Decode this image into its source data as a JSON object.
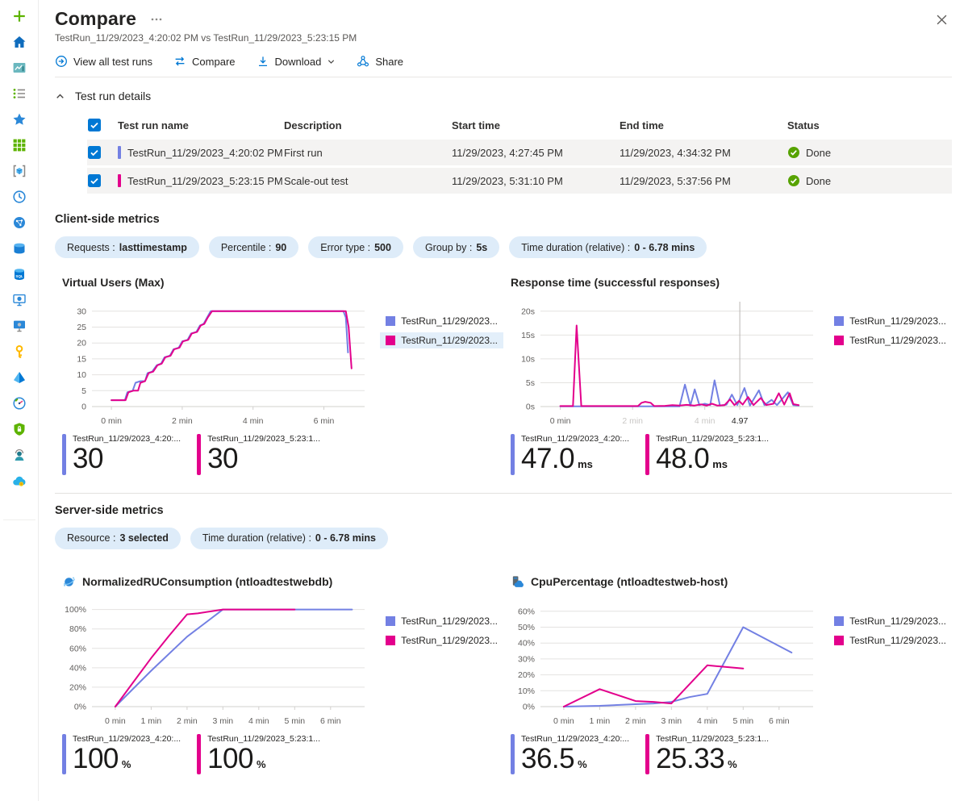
{
  "colors": {
    "accent": "#0078D4",
    "series_blue": "#7380E3",
    "series_magenta": "#E3008C",
    "status_green": "#57A300",
    "pill_bg": "#DEECF9",
    "row_bg": "#F4F3F2"
  },
  "header": {
    "title": "Compare",
    "subtitle": "TestRun_11/29/2023_4:20:02 PM vs TestRun_11/29/2023_5:23:15 PM"
  },
  "toolbar": {
    "view_all_label": "View all test runs",
    "compare_label": "Compare",
    "download_label": "Download",
    "share_label": "Share"
  },
  "details": {
    "section_label": "Test run details",
    "table": {
      "headers": [
        "Test run name",
        "Description",
        "Start time",
        "End time",
        "Status"
      ],
      "rows": [
        {
          "name": "TestRun_11/29/2023_4:20:02 PM",
          "description": "First run",
          "start": "11/29/2023, 4:27:45 PM",
          "end": "11/29/2023, 4:34:32 PM",
          "status": "Done",
          "color": "#7380E3",
          "checked": true
        },
        {
          "name": "TestRun_11/29/2023_5:23:15 PM",
          "description": "Scale-out test",
          "start": "11/29/2023, 5:31:10 PM",
          "end": "11/29/2023, 5:37:56 PM",
          "status": "Done",
          "color": "#E3008C",
          "checked": true
        }
      ]
    }
  },
  "client_metrics": {
    "heading": "Client-side metrics",
    "pills": [
      {
        "label": "Requests :",
        "value": "lasttimestamp"
      },
      {
        "label": "Percentile :",
        "value": "90"
      },
      {
        "label": "Error type :",
        "value": "500"
      },
      {
        "label": "Group by :",
        "value": "5s"
      },
      {
        "label": "Time duration (relative) :",
        "value": "0 - 6.78 mins"
      }
    ]
  },
  "server_metrics": {
    "heading": "Server-side metrics",
    "pills": [
      {
        "label": "Resource :",
        "value": "3 selected"
      },
      {
        "label": "Time duration (relative) :",
        "value": "0 - 6.78 mins"
      }
    ]
  },
  "chart_data": [
    {
      "type": "line",
      "title": "Virtual Users (Max)",
      "xlim": [
        -0.55,
        7.15
      ],
      "ylim": [
        0,
        33
      ],
      "yticks": [
        {
          "v": 30,
          "label": "30"
        },
        {
          "v": 25,
          "label": "25"
        },
        {
          "v": 20,
          "label": "20"
        },
        {
          "v": 15,
          "label": "15"
        },
        {
          "v": 10,
          "label": "10"
        },
        {
          "v": 5,
          "label": "5"
        },
        {
          "v": 0,
          "label": "0"
        }
      ],
      "xticks": [
        {
          "v": 0,
          "label": "0 min"
        },
        {
          "v": 2,
          "label": "2 min"
        },
        {
          "v": 4,
          "label": "4 min"
        },
        {
          "v": 6,
          "label": "6 min"
        }
      ],
      "crosshair_x": null,
      "legend": [
        {
          "label": "TestRun_11/29/2023...",
          "color": "#7380E3",
          "highlight": false
        },
        {
          "label": "TestRun_11/29/2023...",
          "color": "#E3008C",
          "highlight": true
        }
      ],
      "series": [
        {
          "name": "TestRun_11/29/2023_4:20:02 PM",
          "color": "#7380E3",
          "points": [
            [
              0,
              2
            ],
            [
              0.38,
              2
            ],
            [
              0.45,
              4.5
            ],
            [
              0.6,
              5
            ],
            [
              0.68,
              7.5
            ],
            [
              0.82,
              8
            ],
            [
              0.95,
              8
            ],
            [
              1.02,
              10.5
            ],
            [
              1.15,
              11
            ],
            [
              1.28,
              13
            ],
            [
              1.4,
              13.5
            ],
            [
              1.5,
              15.5
            ],
            [
              1.65,
              16
            ],
            [
              1.75,
              18
            ],
            [
              1.9,
              18.5
            ],
            [
              2.0,
              20.5
            ],
            [
              2.15,
              21
            ],
            [
              2.25,
              23
            ],
            [
              2.4,
              23.5
            ],
            [
              2.5,
              25.5
            ],
            [
              2.6,
              26
            ],
            [
              2.7,
              28
            ],
            [
              2.8,
              30
            ],
            [
              6.55,
              30
            ],
            [
              6.62,
              28
            ],
            [
              6.68,
              17
            ]
          ]
        },
        {
          "name": "TestRun_11/29/2023_5:23:15 PM",
          "color": "#E3008C",
          "points": [
            [
              0,
              2
            ],
            [
              0.4,
              2
            ],
            [
              0.48,
              4.5
            ],
            [
              0.62,
              5
            ],
            [
              0.75,
              5
            ],
            [
              0.82,
              7.5
            ],
            [
              0.95,
              8
            ],
            [
              1.05,
              10.5
            ],
            [
              1.18,
              11
            ],
            [
              1.3,
              13
            ],
            [
              1.42,
              13.5
            ],
            [
              1.52,
              15.5
            ],
            [
              1.67,
              16
            ],
            [
              1.77,
              18
            ],
            [
              1.92,
              18.5
            ],
            [
              2.02,
              20.5
            ],
            [
              2.17,
              21
            ],
            [
              2.27,
              23
            ],
            [
              2.42,
              23.5
            ],
            [
              2.52,
              25.5
            ],
            [
              2.62,
              26
            ],
            [
              2.72,
              28
            ],
            [
              2.84,
              30
            ],
            [
              6.62,
              30
            ],
            [
              6.7,
              25
            ],
            [
              6.78,
              12
            ]
          ]
        }
      ],
      "stats": [
        {
          "label": "TestRun_11/29/2023_4:20:...",
          "value": "30",
          "unit": "",
          "color": "#7380E3"
        },
        {
          "label": "TestRun_11/29/2023_5:23:1...",
          "value": "30",
          "unit": "",
          "color": "#E3008C"
        }
      ]
    },
    {
      "type": "line",
      "title": "Response time (successful responses)",
      "xlim": [
        -0.55,
        7.0
      ],
      "ylim": [
        0,
        22
      ],
      "yticks": [
        {
          "v": 20,
          "label": "20s"
        },
        {
          "v": 15,
          "label": "15s"
        },
        {
          "v": 10,
          "label": "10s"
        },
        {
          "v": 5,
          "label": "5s"
        },
        {
          "v": 0,
          "label": "0s"
        }
      ],
      "xticks": [
        {
          "v": 0,
          "label": "0 min"
        },
        {
          "v": 2,
          "label": "2 min",
          "faded": true
        },
        {
          "v": 4,
          "label": "4 min",
          "faded": true
        },
        {
          "v": 4.97,
          "label": "4.97",
          "strong": true
        }
      ],
      "crosshair_x": 4.97,
      "legend": [
        {
          "label": "TestRun_11/29/2023...",
          "color": "#7380E3",
          "highlight": false
        },
        {
          "label": "TestRun_11/29/2023...",
          "color": "#E3008C",
          "highlight": false
        }
      ],
      "series": [
        {
          "name": "TestRun_11/29/2023_4:20:02 PM",
          "color": "#7380E3",
          "points": [
            [
              0,
              0.05
            ],
            [
              3.3,
              0.05
            ],
            [
              3.45,
              4.6
            ],
            [
              3.6,
              0.2
            ],
            [
              3.72,
              3.6
            ],
            [
              3.85,
              0.3
            ],
            [
              4.0,
              0.6
            ],
            [
              4.15,
              0.3
            ],
            [
              4.27,
              5.5
            ],
            [
              4.42,
              0.2
            ],
            [
              4.6,
              0.4
            ],
            [
              4.75,
              2.5
            ],
            [
              4.9,
              0.3
            ],
            [
              5.1,
              3.9
            ],
            [
              5.25,
              0.2
            ],
            [
              5.5,
              3.4
            ],
            [
              5.65,
              0.3
            ],
            [
              5.85,
              1.4
            ],
            [
              6.0,
              0.3
            ],
            [
              6.3,
              3
            ],
            [
              6.45,
              0.3
            ],
            [
              6.6,
              0.2
            ]
          ]
        },
        {
          "name": "TestRun_11/29/2023_5:23:15 PM",
          "color": "#E3008C",
          "points": [
            [
              0,
              0.1
            ],
            [
              0.35,
              0.1
            ],
            [
              0.45,
              17
            ],
            [
              0.58,
              0.1
            ],
            [
              2.15,
              0.1
            ],
            [
              2.25,
              0.8
            ],
            [
              2.35,
              1.0
            ],
            [
              2.5,
              0.8
            ],
            [
              2.6,
              0.1
            ],
            [
              2.9,
              0.15
            ],
            [
              3.1,
              0.3
            ],
            [
              3.3,
              0.2
            ],
            [
              3.5,
              0.35
            ],
            [
              3.7,
              0.2
            ],
            [
              3.9,
              0.45
            ],
            [
              4.05,
              0.2
            ],
            [
              4.2,
              0.6
            ],
            [
              4.35,
              0.2
            ],
            [
              4.55,
              0.3
            ],
            [
              4.7,
              1.5
            ],
            [
              4.82,
              0.3
            ],
            [
              4.95,
              1.2
            ],
            [
              5.05,
              0.4
            ],
            [
              5.2,
              2.0
            ],
            [
              5.35,
              0.3
            ],
            [
              5.55,
              1.8
            ],
            [
              5.7,
              0.3
            ],
            [
              5.9,
              0.6
            ],
            [
              6.05,
              2.8
            ],
            [
              6.2,
              0.4
            ],
            [
              6.35,
              2.8
            ],
            [
              6.45,
              0.5
            ],
            [
              6.6,
              0.3
            ]
          ]
        }
      ],
      "stats": [
        {
          "label": "TestRun_11/29/2023_4:20:...",
          "value": "47.0",
          "unit": "ms",
          "color": "#7380E3"
        },
        {
          "label": "TestRun_11/29/2023_5:23:1...",
          "value": "48.0",
          "unit": "ms",
          "color": "#E3008C"
        }
      ]
    },
    {
      "type": "line",
      "title": "NormalizedRUConsumption (ntloadtestwebdb)",
      "icon": "cosmos-db",
      "xlim": [
        -0.65,
        6.95
      ],
      "ylim": [
        0,
        108
      ],
      "yticks": [
        {
          "v": 100,
          "label": "100%"
        },
        {
          "v": 80,
          "label": "80%"
        },
        {
          "v": 60,
          "label": "60%"
        },
        {
          "v": 40,
          "label": "40%"
        },
        {
          "v": 20,
          "label": "20%"
        },
        {
          "v": 0,
          "label": "0%"
        }
      ],
      "xticks": [
        {
          "v": 0,
          "label": "0 min"
        },
        {
          "v": 1,
          "label": "1 min"
        },
        {
          "v": 2,
          "label": "2 min"
        },
        {
          "v": 3,
          "label": "3 min"
        },
        {
          "v": 4,
          "label": "4 min"
        },
        {
          "v": 5,
          "label": "5 min"
        },
        {
          "v": 6,
          "label": "6 min"
        }
      ],
      "crosshair_x": null,
      "legend": [
        {
          "label": "TestRun_11/29/2023...",
          "color": "#7380E3",
          "highlight": false
        },
        {
          "label": "TestRun_11/29/2023...",
          "color": "#E3008C",
          "highlight": false
        }
      ],
      "series": [
        {
          "name": "TestRun_11/29/2023_4:20:02 PM",
          "color": "#7380E3",
          "points": [
            [
              0,
              0
            ],
            [
              1,
              37
            ],
            [
              2,
              72
            ],
            [
              2.5,
              86
            ],
            [
              3,
              100
            ],
            [
              6.6,
              100
            ]
          ]
        },
        {
          "name": "TestRun_11/29/2023_5:23:15 PM",
          "color": "#E3008C",
          "points": [
            [
              0,
              0
            ],
            [
              0.5,
              25
            ],
            [
              1,
              50
            ],
            [
              1.5,
              73
            ],
            [
              2,
              95
            ],
            [
              2.3,
              96
            ],
            [
              3,
              100
            ],
            [
              5,
              100
            ]
          ]
        }
      ],
      "stats": [
        {
          "label": "TestRun_11/29/2023_4:20:...",
          "value": "100",
          "unit": "%",
          "color": "#7380E3"
        },
        {
          "label": "TestRun_11/29/2023_5:23:1...",
          "value": "100",
          "unit": "%",
          "color": "#E3008C"
        }
      ]
    },
    {
      "type": "line",
      "title": "CpuPercentage (ntloadtestweb-host)",
      "icon": "app-service-host",
      "xlim": [
        -0.65,
        6.95
      ],
      "ylim": [
        0,
        66
      ],
      "yticks": [
        {
          "v": 60,
          "label": "60%"
        },
        {
          "v": 50,
          "label": "50%"
        },
        {
          "v": 40,
          "label": "40%"
        },
        {
          "v": 30,
          "label": "30%"
        },
        {
          "v": 20,
          "label": "20%"
        },
        {
          "v": 10,
          "label": "10%"
        },
        {
          "v": 0,
          "label": "0%"
        }
      ],
      "xticks": [
        {
          "v": 0,
          "label": "0 min"
        },
        {
          "v": 1,
          "label": "1 min"
        },
        {
          "v": 2,
          "label": "2 min"
        },
        {
          "v": 3,
          "label": "3 min"
        },
        {
          "v": 4,
          "label": "4 min"
        },
        {
          "v": 5,
          "label": "5 min"
        },
        {
          "v": 6,
          "label": "6 min"
        }
      ],
      "crosshair_x": null,
      "legend": [
        {
          "label": "TestRun_11/29/2023...",
          "color": "#7380E3",
          "highlight": false
        },
        {
          "label": "TestRun_11/29/2023...",
          "color": "#E3008C",
          "highlight": false
        }
      ],
      "series": [
        {
          "name": "TestRun_11/29/2023_4:20:02 PM",
          "color": "#7380E3",
          "points": [
            [
              0,
              0
            ],
            [
              1,
              0.5
            ],
            [
              2,
              1.5
            ],
            [
              2.5,
              2
            ],
            [
              3,
              3
            ],
            [
              3.5,
              6
            ],
            [
              4,
              8
            ],
            [
              5,
              50
            ],
            [
              6.35,
              34
            ]
          ]
        },
        {
          "name": "TestRun_11/29/2023_5:23:15 PM",
          "color": "#E3008C",
          "points": [
            [
              0,
              0
            ],
            [
              1,
              11
            ],
            [
              2,
              3.5
            ],
            [
              2.5,
              3
            ],
            [
              3,
              2
            ],
            [
              4,
              26
            ],
            [
              4.5,
              25
            ],
            [
              5,
              24
            ]
          ]
        }
      ],
      "stats": [
        {
          "label": "TestRun_11/29/2023_4:20:...",
          "value": "36.5",
          "unit": "%",
          "color": "#7380E3"
        },
        {
          "label": "TestRun_11/29/2023_5:23:1...",
          "value": "25.33",
          "unit": "%",
          "color": "#E3008C"
        }
      ]
    }
  ]
}
